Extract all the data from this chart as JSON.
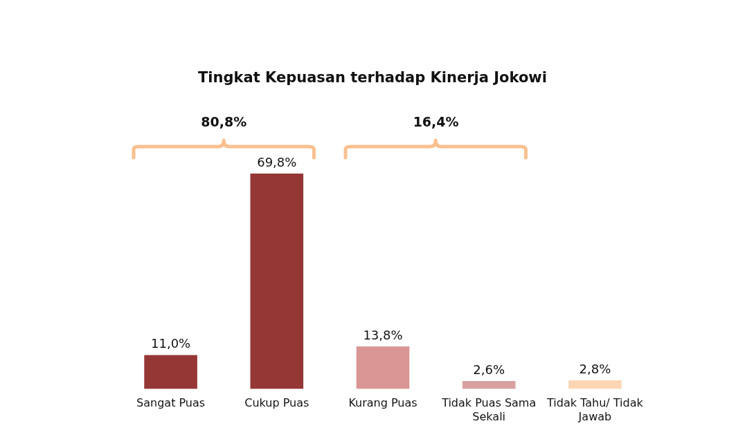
{
  "chart_data": {
    "type": "bar",
    "title": "Tingkat Kepuasan terhadap Kinerja Jokowi",
    "categories": [
      "Sangat Puas",
      "Cukup Puas",
      "Kurang Puas",
      "Tidak Puas Sama Sekali",
      "Tidak Tahu/ Tidak Jawab"
    ],
    "values": [
      11.0,
      69.8,
      13.8,
      2.6,
      2.8
    ],
    "colors": [
      "#953735",
      "#953735",
      "#d99694",
      "#d9a0a0",
      "#fcd5b4"
    ],
    "value_labels": [
      "11,0%",
      "69,8%",
      "13,8%",
      "2,6%",
      "2,8%"
    ],
    "annotations": [
      "80,8%",
      "16,4%"
    ],
    "grid": false,
    "legend": false
  }
}
